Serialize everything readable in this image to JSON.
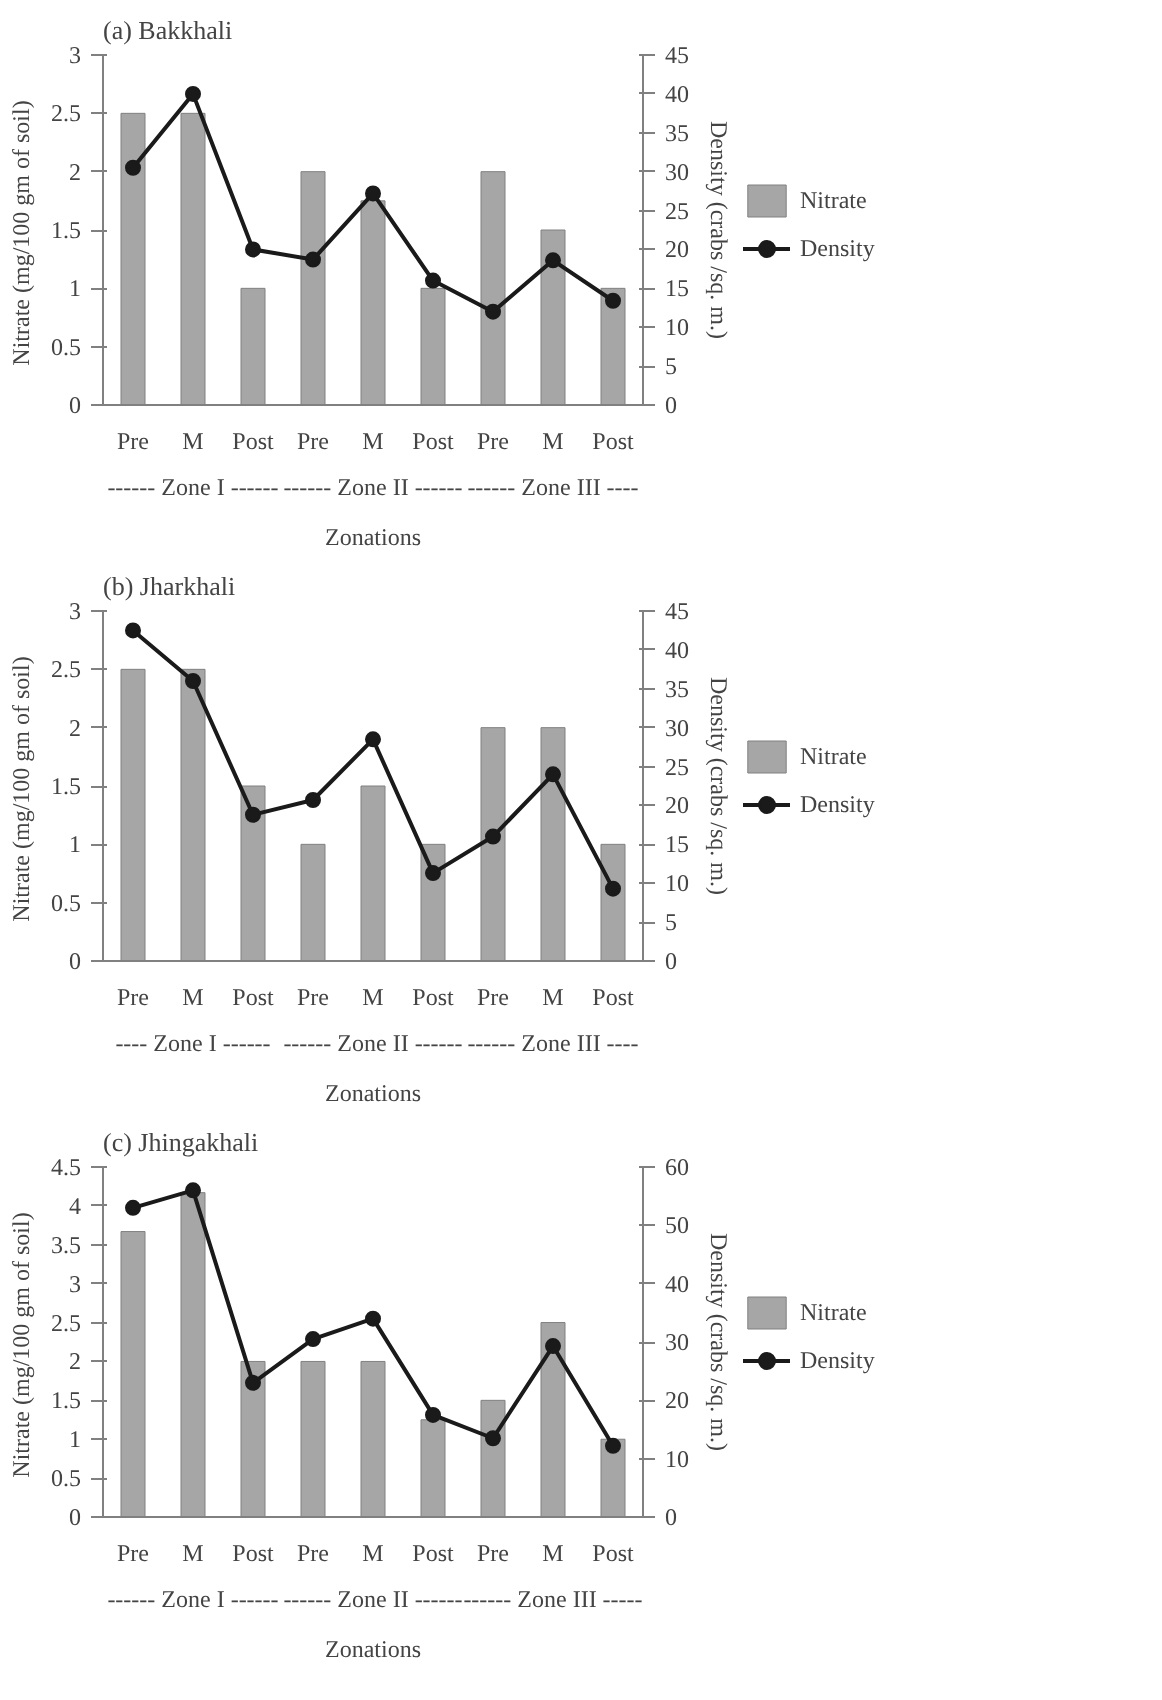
{
  "chart_data": [
    {
      "type": "bar",
      "title": "(a) Bakkhali",
      "xlabel": "Zonations",
      "ylabel": "Nitrate (mg/100  gm of soil)",
      "y2label": "Density (crabs /sq. m.)",
      "categories": [
        "Pre",
        "M",
        "Post",
        "Pre",
        "M",
        "Post",
        "Pre",
        "M",
        "Post"
      ],
      "series": [
        {
          "name": "Nitrate",
          "type": "bar",
          "color": "#a6a6a6",
          "values": [
            2.5,
            2.5,
            1,
            2,
            1.75,
            1,
            2,
            1.5,
            1
          ]
        },
        {
          "name": "Density",
          "type": "line",
          "axis": "y2",
          "color": "#1a1a1a",
          "marker": "circle",
          "values": [
            30.5,
            40,
            20,
            18.7,
            27.2,
            16,
            12,
            18.6,
            13.4
          ]
        }
      ],
      "ylim": [
        0,
        3
      ],
      "yticks": [
        0,
        0.5,
        1,
        1.5,
        2,
        2.5,
        3
      ],
      "y2lim": [
        0,
        45
      ],
      "y2ticks": [
        0,
        5,
        10,
        15,
        20,
        25,
        30,
        35,
        40,
        45
      ],
      "annotations": [
        "------ Zone I ------",
        "------ Zone II ------",
        "------ Zone III ----"
      ],
      "legend": "right"
    },
    {
      "type": "bar",
      "title": "(b) Jharkhali",
      "xlabel": "Zonations",
      "ylabel": "Nitrate (mg/100  gm of soil)",
      "y2label": "Density (crabs /sq. m.)",
      "categories": [
        "Pre",
        "M",
        "Post",
        "Pre",
        "M",
        "Post",
        "Pre",
        "M",
        "Post"
      ],
      "series": [
        {
          "name": "Nitrate",
          "type": "bar",
          "color": "#a6a6a6",
          "values": [
            2.5,
            2.5,
            1.5,
            1,
            1.5,
            1,
            2,
            2,
            1
          ]
        },
        {
          "name": "Density",
          "type": "line",
          "axis": "y2",
          "color": "#1a1a1a",
          "marker": "circle",
          "values": [
            42.5,
            36,
            18.8,
            20.7,
            28.5,
            11.3,
            16,
            24,
            9.3
          ]
        }
      ],
      "ylim": [
        0,
        3
      ],
      "yticks": [
        0,
        0.5,
        1,
        1.5,
        2,
        2.5,
        3
      ],
      "y2lim": [
        0,
        45
      ],
      "y2ticks": [
        0,
        5,
        10,
        15,
        20,
        25,
        30,
        35,
        40,
        45
      ],
      "annotations": [
        "---- Zone I ------",
        "------ Zone II ------",
        "------ Zone III ----"
      ],
      "legend": "right"
    },
    {
      "type": "bar",
      "title": "(c) Jhingakhali",
      "xlabel": "Zonations",
      "ylabel": "Nitrate (mg/100  gm of soil)",
      "y2label": "Density (crabs /sq. m.)",
      "categories": [
        "Pre",
        "M",
        "Post",
        "Pre",
        "M",
        "Post",
        "Pre",
        "M",
        "Post"
      ],
      "series": [
        {
          "name": "Nitrate",
          "type": "bar",
          "color": "#a6a6a6",
          "values": [
            3.67,
            4.17,
            2,
            2,
            2,
            1.25,
            1.5,
            2.5,
            1
          ]
        },
        {
          "name": "Density",
          "type": "line",
          "axis": "y2",
          "color": "#1a1a1a",
          "marker": "circle",
          "values": [
            53,
            56,
            23,
            30.5,
            34,
            17.5,
            13.5,
            29.3,
            12.2
          ]
        }
      ],
      "ylim": [
        0,
        4.5
      ],
      "yticks": [
        0,
        0.5,
        1,
        1.5,
        2,
        2.5,
        3,
        3.5,
        4,
        4.5
      ],
      "y2lim": [
        0,
        60
      ],
      "y2ticks": [
        0,
        10,
        20,
        30,
        40,
        50,
        60
      ],
      "annotations": [
        "------ Zone I ------",
        "------ Zone II ------",
        "------ Zone III -----"
      ],
      "legend": "right"
    }
  ]
}
